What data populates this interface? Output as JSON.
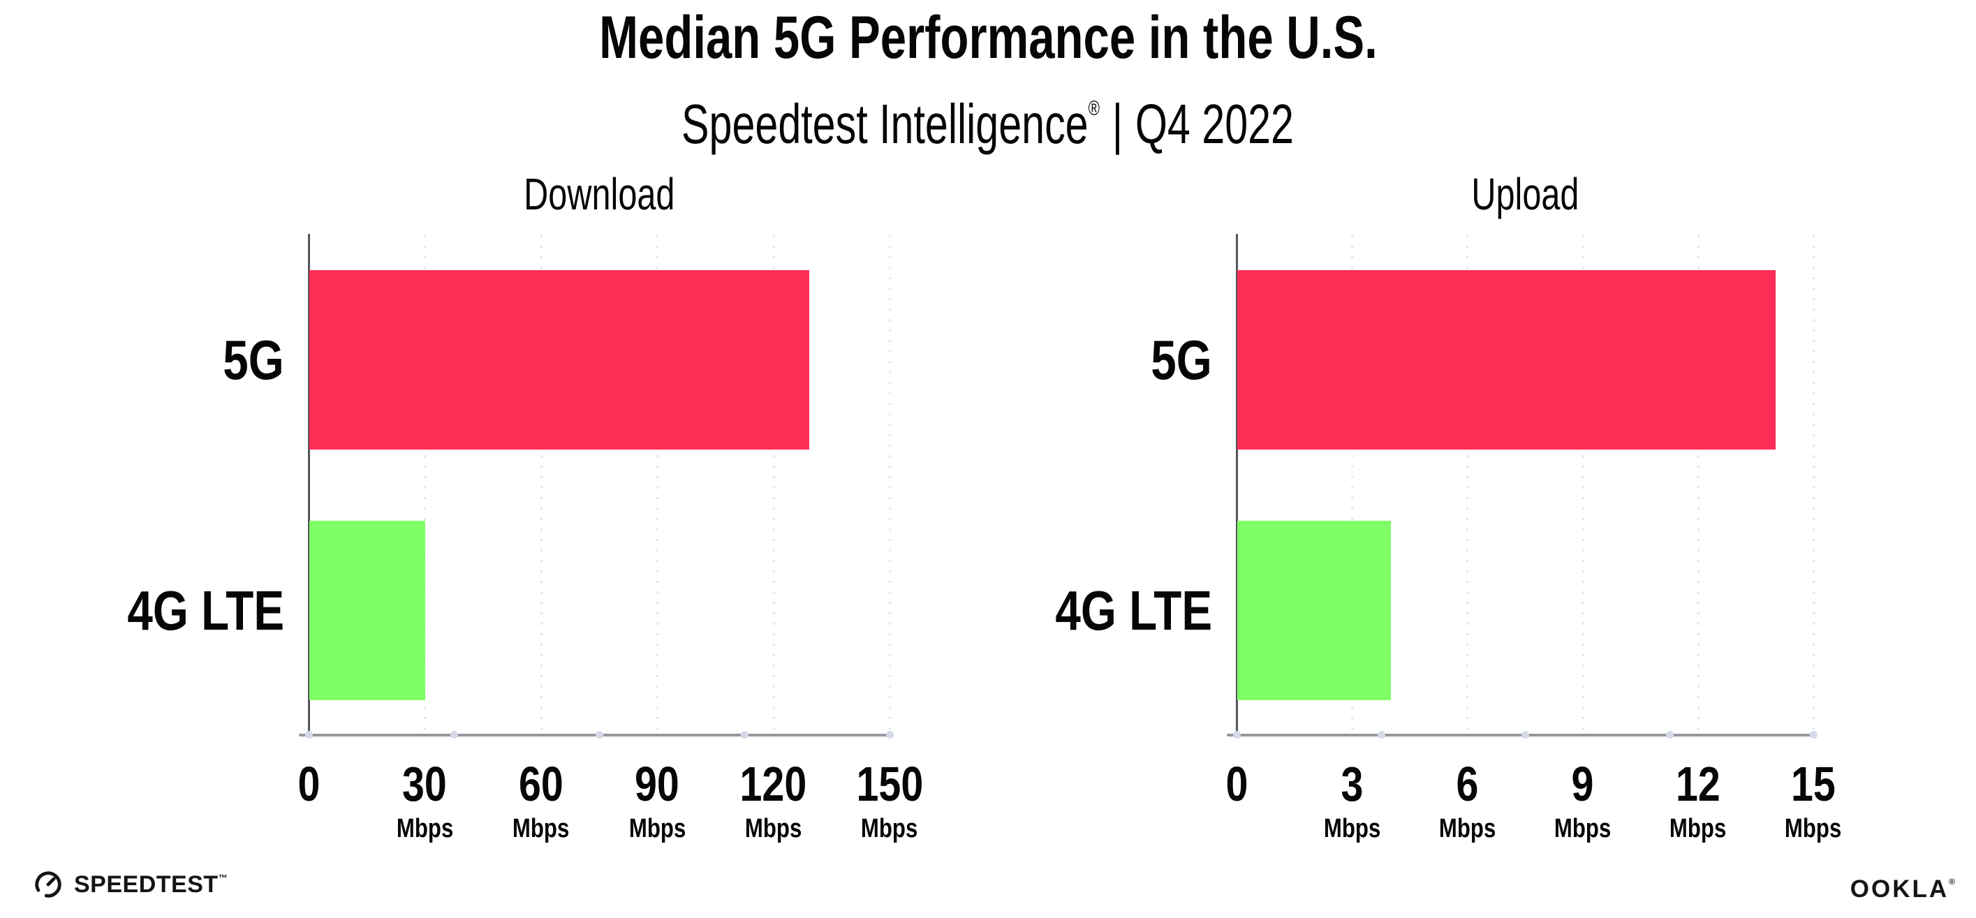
{
  "header": {
    "title": "Median 5G Performance in the U.S.",
    "subtitle_brand": "Speedtest Intelligence",
    "subtitle_reg": "®",
    "subtitle_sep": "|",
    "subtitle_period": "Q4 2022"
  },
  "chart_data": [
    {
      "type": "bar",
      "orientation": "horizontal",
      "title": "Download",
      "categories": [
        "5G",
        "4G LTE"
      ],
      "values": [
        129,
        30
      ],
      "unit": "Mbps",
      "xlim": [
        0,
        150
      ],
      "xticks": [
        0,
        30,
        60,
        90,
        120,
        150
      ],
      "bar_colors": [
        "#FF2E56",
        "#7FFF66"
      ],
      "grid": "dotted-vertical",
      "legend": "none"
    },
    {
      "type": "bar",
      "orientation": "horizontal",
      "title": "Upload",
      "categories": [
        "5G",
        "4G LTE"
      ],
      "values": [
        14,
        4
      ],
      "unit": "Mbps",
      "xlim": [
        0,
        15
      ],
      "xticks": [
        0,
        3,
        6,
        9,
        12,
        15
      ],
      "bar_colors": [
        "#FF2E56",
        "#7FFF66"
      ],
      "grid": "dotted-vertical",
      "legend": "none"
    }
  ],
  "footer": {
    "speedtest_wordmark": "SPEEDTEST",
    "speedtest_tm": "™",
    "ookla_wordmark": "OOKLA",
    "ookla_reg": "®"
  },
  "colors": {
    "bar_5g": "#FF2E56",
    "bar_4g_lte": "#7FFF66",
    "gridline": "#E2E4F0",
    "x_axis_line": "#97979D",
    "y_axis_line": "#55555C",
    "axis_end_dot": "#D5D9E8",
    "text": "#060606",
    "background": "#FFFFFF"
  }
}
